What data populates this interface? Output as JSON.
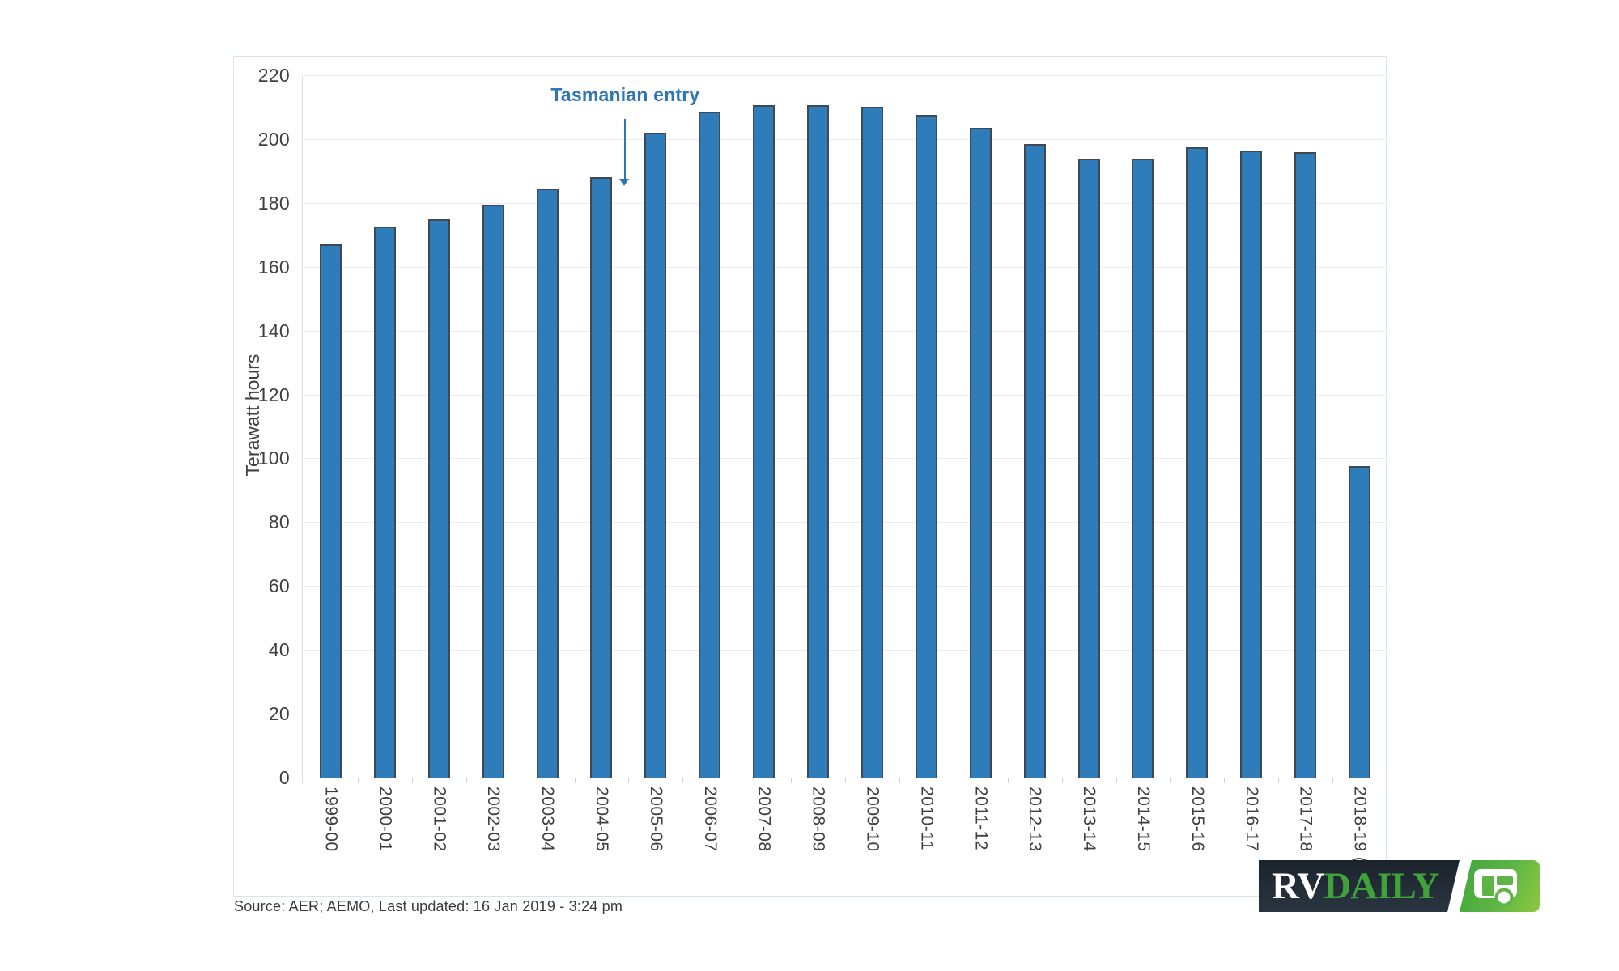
{
  "chart_data": {
    "type": "bar",
    "title": "",
    "xlabel": "",
    "ylabel": "Terawatt hours",
    "ylim": [
      0,
      220
    ],
    "yticks": [
      0,
      20,
      40,
      60,
      80,
      100,
      120,
      140,
      160,
      180,
      200,
      220
    ],
    "grid": true,
    "legend": "none",
    "bar_color": "#2e7dba",
    "bar_border_color": "#3e4953",
    "categories": [
      "1999-00",
      "2000-01",
      "2001-02",
      "2002-03",
      "2003-04",
      "2004-05",
      "2005-06",
      "2006-07",
      "2007-08",
      "2008-09",
      "2009-10",
      "2010-11",
      "2011-12",
      "2012-13",
      "2013-14",
      "2014-15",
      "2015-16",
      "2016-17",
      "2017-18",
      "2018-19 ("
    ],
    "values": [
      167,
      172.5,
      175,
      179.5,
      184.5,
      188,
      202,
      208.5,
      210.5,
      210.5,
      210,
      207.5,
      203.5,
      198.5,
      194,
      194,
      197.5,
      196.5,
      196,
      97.5
    ],
    "annotation": {
      "text": "Tasmanian entry",
      "color": "#2d76b5",
      "arrow_between": [
        "2004-05",
        "2005-06"
      ]
    }
  },
  "source_note": "Source: AER; AEMO, Last updated: 16 Jan 2019 - 3:24 pm",
  "logo": {
    "text_rv": "RV",
    "text_daily": "DAILY",
    "icon": "caravan-icon",
    "dark_color": "#222b34",
    "green_color": "#5cb544"
  }
}
